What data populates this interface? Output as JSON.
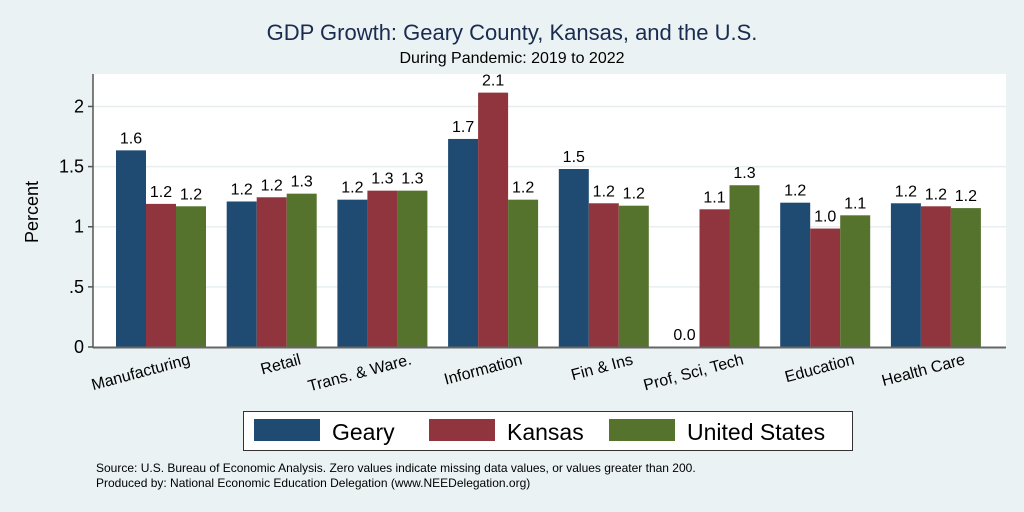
{
  "chart_data": {
    "type": "bar",
    "title": "GDP Growth: Geary County, Kansas, and the U.S.",
    "subtitle": "During Pandemic: 2019 to 2022",
    "xlabel": "",
    "ylabel": "Percent",
    "ylim": [
      0,
      2.27
    ],
    "yticks": [
      0,
      0.5,
      1,
      1.5,
      2
    ],
    "ytick_labels": [
      "0",
      ".5",
      "1",
      "1.5",
      "2"
    ],
    "grid": true,
    "categories": [
      "Manufacturing",
      "Retail",
      "Trans. & Ware.",
      "Information",
      "Fin & Ins",
      "Prof, Sci, Tech",
      "Education",
      "Health Care"
    ],
    "series": [
      {
        "name": "Geary",
        "color": "#1f4a72",
        "values": [
          1.635,
          1.21,
          1.225,
          1.73,
          1.48,
          0.0,
          1.2,
          1.195
        ],
        "labels": [
          "1.6",
          "1.2",
          "1.2",
          "1.7",
          "1.5",
          "0.0",
          "1.2",
          "1.2"
        ]
      },
      {
        "name": "Kansas",
        "color": "#90353d",
        "values": [
          1.19,
          1.245,
          1.3,
          2.115,
          1.195,
          1.145,
          0.985,
          1.17
        ],
        "labels": [
          "1.2",
          "1.2",
          "1.3",
          "2.1",
          "1.2",
          "1.1",
          "1.0",
          "1.2"
        ]
      },
      {
        "name": "United States",
        "color": "#55732d",
        "values": [
          1.17,
          1.275,
          1.3,
          1.225,
          1.175,
          1.345,
          1.095,
          1.155
        ],
        "labels": [
          "1.2",
          "1.3",
          "1.3",
          "1.2",
          "1.2",
          "1.3",
          "1.1",
          "1.2"
        ]
      }
    ],
    "legend_position": "bottom"
  },
  "footer": {
    "source": "Source: U.S. Bureau of Economic Analysis. Zero values indicate missing data values, or values greater than 200.",
    "produced_by": "Produced by: National Economic Education Delegation (www.NEEDelegation.org)"
  }
}
